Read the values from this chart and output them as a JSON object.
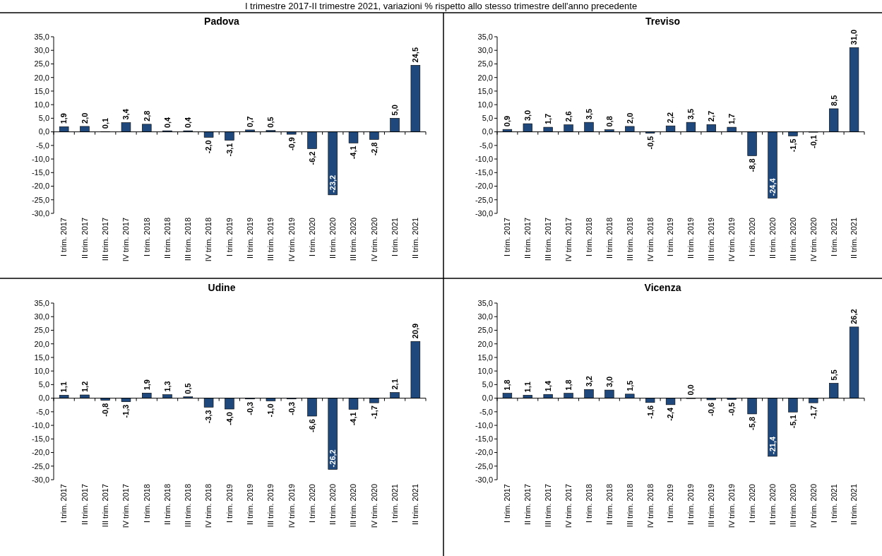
{
  "chart_data": [
    {
      "type": "bar",
      "title": "Padova",
      "subtitle": "I trimestre 2017-II trimestre 2021, variazioni % rispetto allo stesso trimestre dell'anno precedente",
      "categories": [
        "I trim. 2017",
        "II trim. 2017",
        "III trim. 2017",
        "IV trim. 2017",
        "I trim. 2018",
        "II trim. 2018",
        "III trim. 2018",
        "IV trim. 2018",
        "I trim. 2019",
        "II trim. 2019",
        "III trim. 2019",
        "IV trim. 2019",
        "I trim. 2020",
        "II trim. 2020",
        "III trim. 2020",
        "IV trim. 2020",
        "I trim. 2021",
        "II trim. 2021"
      ],
      "values": [
        1.9,
        2.0,
        0.1,
        3.4,
        2.8,
        0.4,
        0.4,
        -2.0,
        -3.1,
        0.7,
        0.5,
        -0.9,
        -6.2,
        -23.2,
        -4.1,
        -2.8,
        5.0,
        24.5
      ],
      "value_labels": [
        "1,9",
        "2,0",
        "0,1",
        "3,4",
        "2,8",
        "0,4",
        "0,4",
        "-2,0",
        "-3,1",
        "0,7",
        "0,5",
        "-0,9",
        "-6,2",
        "-23,2",
        "-4,1",
        "-2,8",
        "5,0",
        "24,5"
      ],
      "color": "#1f497d",
      "ylim": [
        -30,
        35
      ],
      "yticks": [
        {
          "value": -30,
          "label": "-30,0"
        },
        {
          "value": -25,
          "label": "-25,0"
        },
        {
          "value": -20,
          "label": "-20,0"
        },
        {
          "value": -15,
          "label": "-15,0"
        },
        {
          "value": -10,
          "label": "-10,0"
        },
        {
          "value": -5,
          "label": "-5,0"
        },
        {
          "value": 0,
          "label": "0,0"
        },
        {
          "value": 5,
          "label": "5,0"
        },
        {
          "value": 10,
          "label": "10,0"
        },
        {
          "value": 15,
          "label": "15,0"
        },
        {
          "value": 20,
          "label": "20,0"
        },
        {
          "value": 25,
          "label": "25,0"
        },
        {
          "value": 30,
          "label": "30,0"
        },
        {
          "value": 35,
          "label": "35,0"
        }
      ]
    },
    {
      "type": "bar",
      "title": "Treviso",
      "categories": [
        "I trim. 2017",
        "II trim. 2017",
        "III trim. 2017",
        "IV trim. 2017",
        "I trim. 2018",
        "II trim. 2018",
        "III trim. 2018",
        "IV trim. 2018",
        "I trim. 2019",
        "II trim. 2019",
        "III trim. 2019",
        "IV trim. 2019",
        "I trim. 2020",
        "II trim. 2020",
        "III trim. 2020",
        "IV trim. 2020",
        "I trim. 2021",
        "II trim. 2021"
      ],
      "values": [
        0.9,
        3.0,
        1.7,
        2.6,
        3.5,
        0.8,
        2.0,
        -0.5,
        2.2,
        3.5,
        2.7,
        1.7,
        -8.8,
        -24.4,
        -1.5,
        -0.1,
        8.5,
        31.0
      ],
      "value_labels": [
        "0,9",
        "3,0",
        "1,7",
        "2,6",
        "3,5",
        "0,8",
        "2,0",
        "-0,5",
        "2,2",
        "3,5",
        "2,7",
        "1,7",
        "-8,8",
        "-24,4",
        "-1,5",
        "-0,1",
        "8,5",
        "31,0"
      ],
      "color": "#1f497d",
      "ylim": [
        -30,
        35
      ],
      "yticks": [
        {
          "value": -30,
          "label": "-30,0"
        },
        {
          "value": -25,
          "label": "-25,0"
        },
        {
          "value": -20,
          "label": "-20,0"
        },
        {
          "value": -15,
          "label": "-15,0"
        },
        {
          "value": -10,
          "label": "-10,0"
        },
        {
          "value": -5,
          "label": "-5,0"
        },
        {
          "value": 0,
          "label": "0,0"
        },
        {
          "value": 5,
          "label": "5,0"
        },
        {
          "value": 10,
          "label": "10,0"
        },
        {
          "value": 15,
          "label": "15,0"
        },
        {
          "value": 20,
          "label": "20,0"
        },
        {
          "value": 25,
          "label": "25,0"
        },
        {
          "value": 30,
          "label": "30,0"
        },
        {
          "value": 35,
          "label": "35,0"
        }
      ]
    },
    {
      "type": "bar",
      "title": "Udine",
      "categories": [
        "I trim. 2017",
        "II trim. 2017",
        "III trim. 2017",
        "IV trim. 2017",
        "I trim. 2018",
        "II trim. 2018",
        "III trim. 2018",
        "IV trim. 2018",
        "I trim. 2019",
        "II trim. 2019",
        "III trim. 2019",
        "IV trim. 2019",
        "I trim. 2020",
        "II trim. 2020",
        "III trim. 2020",
        "IV trim. 2020",
        "I trim. 2021",
        "II trim. 2021"
      ],
      "values": [
        1.1,
        1.2,
        -0.8,
        -1.3,
        1.9,
        1.3,
        0.5,
        -3.3,
        -4.0,
        -0.3,
        -1.0,
        -0.3,
        -6.6,
        -26.2,
        -4.1,
        -1.7,
        2.1,
        20.9
      ],
      "value_labels": [
        "1,1",
        "1,2",
        "-0,8",
        "-1,3",
        "1,9",
        "1,3",
        "0,5",
        "-3,3",
        "-4,0",
        "-0,3",
        "-1,0",
        "-0,3",
        "-6,6",
        "-26,2",
        "-4,1",
        "-1,7",
        "2,1",
        "20,9"
      ],
      "color": "#1f497d",
      "ylim": [
        -30,
        35
      ],
      "yticks": [
        {
          "value": -30,
          "label": "-30,0"
        },
        {
          "value": -25,
          "label": "-25,0"
        },
        {
          "value": -20,
          "label": "-20,0"
        },
        {
          "value": -15,
          "label": "-15,0"
        },
        {
          "value": -10,
          "label": "-10,0"
        },
        {
          "value": -5,
          "label": "-5,0"
        },
        {
          "value": 0,
          "label": "0,0"
        },
        {
          "value": 5,
          "label": "5,0"
        },
        {
          "value": 10,
          "label": "10,0"
        },
        {
          "value": 15,
          "label": "15,0"
        },
        {
          "value": 20,
          "label": "20,0"
        },
        {
          "value": 25,
          "label": "25,0"
        },
        {
          "value": 30,
          "label": "30,0"
        },
        {
          "value": 35,
          "label": "35,0"
        }
      ]
    },
    {
      "type": "bar",
      "title": "Vicenza",
      "categories": [
        "I trim. 2017",
        "II trim. 2017",
        "III trim. 2017",
        "IV trim. 2017",
        "I trim. 2018",
        "II trim. 2018",
        "III trim. 2018",
        "IV trim. 2018",
        "I trim. 2019",
        "II trim. 2019",
        "III trim. 2019",
        "IV trim. 2019",
        "I trim. 2020",
        "II trim. 2020",
        "III trim. 2020",
        "IV trim. 2020",
        "I trim. 2021",
        "II trim. 2021"
      ],
      "values": [
        1.8,
        1.1,
        1.4,
        1.8,
        3.2,
        3.0,
        1.5,
        -1.6,
        -2.4,
        0.0,
        -0.6,
        -0.5,
        -5.8,
        -21.4,
        -5.1,
        -1.7,
        5.5,
        26.2
      ],
      "value_labels": [
        "1,8",
        "1,1",
        "1,4",
        "1,8",
        "3,2",
        "3,0",
        "1,5",
        "-1,6",
        "-2,4",
        "0,0",
        "-0,6",
        "-0,5",
        "-5,8",
        "-21,4",
        "-5,1",
        "-1,7",
        "5,5",
        "26,2"
      ],
      "color": "#1f497d",
      "ylim": [
        -30,
        35
      ],
      "yticks": [
        {
          "value": -30,
          "label": "-30,0"
        },
        {
          "value": -25,
          "label": "-25,0"
        },
        {
          "value": -20,
          "label": "-20,0"
        },
        {
          "value": -15,
          "label": "-15,0"
        },
        {
          "value": -10,
          "label": "-10,0"
        },
        {
          "value": -5,
          "label": "-5,0"
        },
        {
          "value": 0,
          "label": "0,0"
        },
        {
          "value": 5,
          "label": "5,0"
        },
        {
          "value": 10,
          "label": "10,0"
        },
        {
          "value": 15,
          "label": "15,0"
        },
        {
          "value": 20,
          "label": "20,0"
        },
        {
          "value": 25,
          "label": "25,0"
        },
        {
          "value": 30,
          "label": "30,0"
        },
        {
          "value": 35,
          "label": "35,0"
        }
      ]
    }
  ]
}
